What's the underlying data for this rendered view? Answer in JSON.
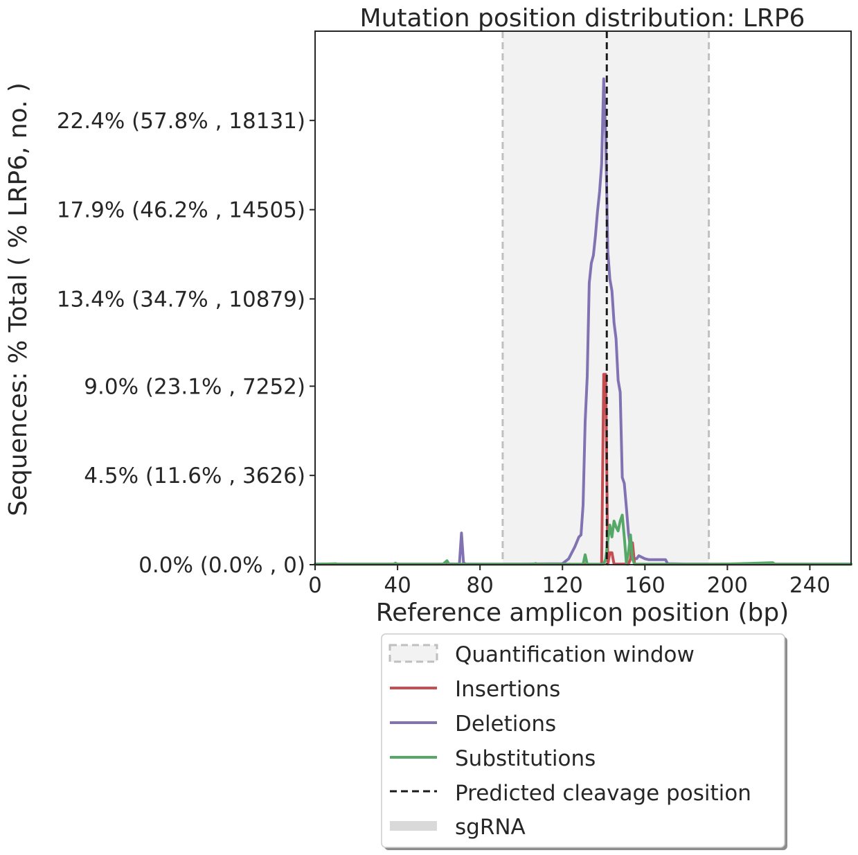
{
  "chart_data": {
    "type": "line",
    "title": "Mutation position distribution: LRP6",
    "xlabel": "Reference amplicon position (bp)",
    "ylabel": "Sequences: % Total ( % LRP6, no. )",
    "xlim": [
      0,
      260
    ],
    "ylim": [
      0,
      26.9
    ],
    "x_ticks": [
      {
        "value": 0,
        "label": "0"
      },
      {
        "value": 40,
        "label": "40"
      },
      {
        "value": 80,
        "label": "80"
      },
      {
        "value": 120,
        "label": "120"
      },
      {
        "value": 160,
        "label": "160"
      },
      {
        "value": 200,
        "label": "200"
      },
      {
        "value": 240,
        "label": "240"
      }
    ],
    "y_ticks": [
      {
        "value": 0.0,
        "label": "0.0% (0.0% , 0)"
      },
      {
        "value": 4.5,
        "label": "4.5% (11.6% , 3626)"
      },
      {
        "value": 9.0,
        "label": "9.0% (23.1% , 7252)"
      },
      {
        "value": 13.4,
        "label": "13.4% (34.7% , 10879)"
      },
      {
        "value": 17.9,
        "label": "17.9% (46.2% , 14505)"
      },
      {
        "value": 22.4,
        "label": "22.4% (57.8% , 18131)"
      }
    ],
    "quantification_window": [
      91,
      191
    ],
    "predicted_cleavage_position": 141.5,
    "grid": false,
    "legend_placement": "bottom-center, below plot",
    "legend": [
      {
        "key": "window",
        "label": "Quantification window"
      },
      {
        "key": "insertions",
        "label": "Insertions"
      },
      {
        "key": "deletions",
        "label": "Deletions"
      },
      {
        "key": "substitutions",
        "label": "Substitutions"
      },
      {
        "key": "cleavage",
        "label": "Predicted cleavage position"
      },
      {
        "key": "sgrna",
        "label": "sgRNA"
      }
    ],
    "series": [
      {
        "name": "Deletions",
        "color": "#8172b2",
        "points": [
          [
            0,
            0.03
          ],
          [
            60,
            0.03
          ],
          [
            70,
            0.04
          ],
          [
            71,
            1.6
          ],
          [
            72,
            0.1
          ],
          [
            73,
            0.03
          ],
          [
            100,
            0.03
          ],
          [
            120,
            0.05
          ],
          [
            123,
            0.3
          ],
          [
            126,
            0.9
          ],
          [
            128,
            1.4
          ],
          [
            129,
            1.5
          ],
          [
            130,
            3.0
          ],
          [
            131,
            7.2
          ],
          [
            132,
            9.5
          ],
          [
            133,
            14.2
          ],
          [
            134,
            15.2
          ],
          [
            135,
            15.6
          ],
          [
            136,
            16.6
          ],
          [
            137,
            17.8
          ],
          [
            138,
            18.8
          ],
          [
            139,
            20.2
          ],
          [
            140,
            24.5
          ],
          [
            141,
            21.6
          ],
          [
            142,
            15.8
          ],
          [
            143,
            14.4
          ],
          [
            144,
            13.8
          ],
          [
            145,
            12.2
          ],
          [
            146,
            11.4
          ],
          [
            147,
            9.3
          ],
          [
            148,
            8.7
          ],
          [
            149,
            4.4
          ],
          [
            150,
            4.1
          ],
          [
            151,
            2.9
          ],
          [
            152,
            1.6
          ],
          [
            153,
            0.8
          ],
          [
            154,
            0.5
          ],
          [
            155,
            0.3
          ],
          [
            156,
            0.3
          ],
          [
            157,
            0.45
          ],
          [
            158,
            0.4
          ],
          [
            160,
            0.3
          ],
          [
            162,
            0.25
          ],
          [
            170,
            0.25
          ],
          [
            171,
            0.05
          ],
          [
            180,
            0.03
          ],
          [
            260,
            0.03
          ]
        ]
      },
      {
        "name": "Insertions",
        "color": "#c44e52",
        "points": [
          [
            0,
            0.02
          ],
          [
            138,
            0.02
          ],
          [
            139,
            0.02
          ],
          [
            140,
            9.6
          ],
          [
            141,
            9.6
          ],
          [
            142,
            0.02
          ],
          [
            143,
            0.6
          ],
          [
            144,
            0.6
          ],
          [
            145,
            0.03
          ],
          [
            150,
            0.03
          ],
          [
            152,
            0.02
          ],
          [
            153,
            0.3
          ],
          [
            154,
            1.1
          ],
          [
            155,
            0.02
          ],
          [
            260,
            0.02
          ]
        ]
      },
      {
        "name": "Substitutions",
        "color": "#55a868",
        "points": [
          [
            0,
            0.02
          ],
          [
            10,
            0.05
          ],
          [
            11,
            0.02
          ],
          [
            20,
            0.02
          ],
          [
            38,
            0.02
          ],
          [
            39,
            0.08
          ],
          [
            40,
            0.02
          ],
          [
            62,
            0.02
          ],
          [
            64,
            0.2
          ],
          [
            65,
            0.02
          ],
          [
            106,
            0.02
          ],
          [
            107,
            0.06
          ],
          [
            108,
            0.02
          ],
          [
            130,
            0.02
          ],
          [
            131,
            0.5
          ],
          [
            132,
            0.02
          ],
          [
            140,
            0.02
          ],
          [
            141,
            0.3
          ],
          [
            142,
            1.2
          ],
          [
            143,
            2.0
          ],
          [
            144,
            1.4
          ],
          [
            145,
            2.2
          ],
          [
            146,
            1.9
          ],
          [
            147,
            1.7
          ],
          [
            148,
            2.2
          ],
          [
            149,
            2.5
          ],
          [
            150,
            1.4
          ],
          [
            151,
            0.1
          ],
          [
            152,
            0.6
          ],
          [
            153,
            1.5
          ],
          [
            154,
            0.3
          ],
          [
            155,
            0.02
          ],
          [
            195,
            0.02
          ],
          [
            210,
            0.06
          ],
          [
            222,
            0.1
          ],
          [
            223,
            0.02
          ],
          [
            260,
            0.02
          ]
        ]
      }
    ],
    "colors": {
      "window_fill": "#f2f2f2",
      "window_edge": "#bfbfbf",
      "cleavage": "#1a1a1a",
      "sgrna": "#d9d9d9",
      "axis": "#262626"
    }
  }
}
